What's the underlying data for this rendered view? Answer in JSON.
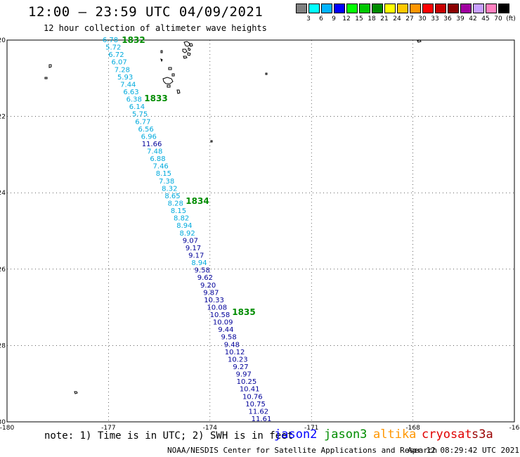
{
  "header": {
    "title": "12:00 – 23:59 UTC 04/09/2021",
    "subtitle": "12 hour collection of altimeter wave heights"
  },
  "legend": {
    "colors": [
      "#808080",
      "#00ffff",
      "#00b4ff",
      "#0000ff",
      "#00ff00",
      "#00c800",
      "#008c00",
      "#ffff00",
      "#ffc800",
      "#ff9600",
      "#ff0000",
      "#c80000",
      "#8b0000",
      "#a000a0",
      "#c8a0ff",
      "#ff80c0",
      "#000000"
    ],
    "labels": [
      "3",
      "6",
      "9",
      "12",
      "15",
      "18",
      "21",
      "24",
      "27",
      "30",
      "33",
      "36",
      "39",
      "42",
      "45",
      "70",
      "(ft)"
    ]
  },
  "map": {
    "lat_ticks": [
      "-20",
      "-22",
      "-24",
      "-26",
      "-28",
      "-30"
    ],
    "lon_ticks": [
      "-180",
      "-177",
      "-174",
      "-171",
      "-168",
      "-16"
    ],
    "time_labels": [
      {
        "text": "1832",
        "lon": -175.3,
        "lat": -20.0
      },
      {
        "text": "1833",
        "lon": -174.6,
        "lat": -21.5
      },
      {
        "text": "1834",
        "lon": -173.3,
        "lat": -24.3
      },
      {
        "text": "1835",
        "lon": -171.9,
        "lat": -27.2
      }
    ],
    "track_color_default": "#00aadd",
    "track_color_high": "#000099",
    "values": [
      "6.78",
      "5.72",
      "6.72",
      "6.07",
      "7.28",
      "5.93",
      "7.44",
      "6.63",
      "6.38",
      "6.14",
      "5.75",
      "6.77",
      "6.56",
      "6.96",
      "11.66",
      "7.48",
      "6.88",
      "7.46",
      "8.15",
      "7.38",
      "8.32",
      "8.65",
      "8.28",
      "8.15",
      "8.82",
      "8.94",
      "8.92",
      "9.07",
      "9.17",
      "9.17",
      "8.94",
      "9.58",
      "9.62",
      "9.20",
      "9.87",
      "10.33",
      "10.08",
      "10.58",
      "10.09",
      "9.44",
      "9.58",
      "9.48",
      "10.12",
      "10.23",
      "9.27",
      "9.97",
      "10.25",
      "10.41",
      "10.76",
      "10.75",
      "11.62",
      "11.61"
    ]
  },
  "footer": {
    "note": "note: 1) Time is in UTC; 2) SWH is in feet",
    "satellites": [
      {
        "name": "jason2",
        "color": "#0000ff"
      },
      {
        "name": "jason3",
        "color": "#008c00"
      },
      {
        "name": "altika",
        "color": "#ff9600"
      },
      {
        "name": "cryosat",
        "color": "#e00000"
      },
      {
        "name": "s3a",
        "color": "#990000"
      }
    ],
    "credit": "NOAA/NESDIS Center for Satellite Applications and Research",
    "date": "Apr 12 08:29:42 UTC 2021"
  }
}
